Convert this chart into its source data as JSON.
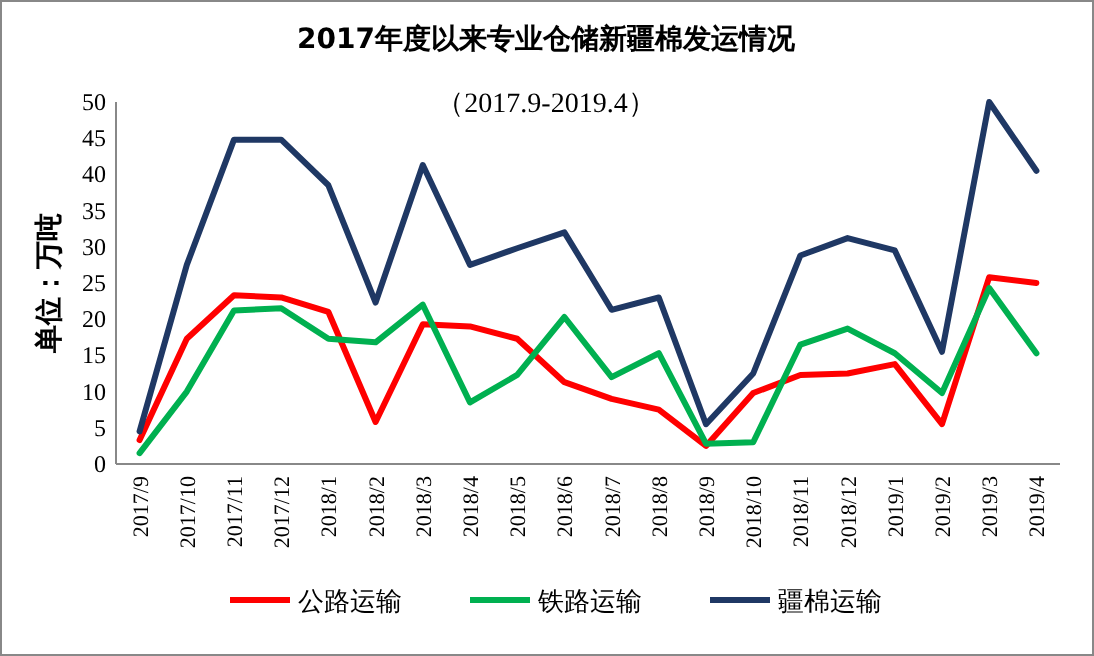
{
  "chart_data": {
    "type": "line",
    "title": "2017年度以来专业仓储新疆棉发运情况",
    "subtitle": "（2017.9-2019.4）",
    "ylabel": "单位：万吨",
    "categories": [
      "2017/9",
      "2017/10",
      "2017/11",
      "2017/12",
      "2018/1",
      "2018/2",
      "2018/3",
      "2018/4",
      "2018/5",
      "2018/6",
      "2018/7",
      "2018/8",
      "2018/9",
      "2018/10",
      "2018/11",
      "2018/12",
      "2019/1",
      "2019/2",
      "2019/3",
      "2019/4"
    ],
    "series": [
      {
        "name": "公路运输",
        "color": "#ff0000",
        "values": [
          3.3,
          17.3,
          23.3,
          23.0,
          21.0,
          5.8,
          19.3,
          19.0,
          17.3,
          11.3,
          9.0,
          7.5,
          2.5,
          9.8,
          12.3,
          12.5,
          13.8,
          5.5,
          25.8,
          25.0
        ]
      },
      {
        "name": "铁路运输",
        "color": "#00b050",
        "values": [
          1.5,
          10.0,
          21.2,
          21.5,
          17.3,
          16.8,
          22.0,
          8.5,
          12.3,
          20.3,
          12.0,
          15.3,
          2.8,
          3.0,
          16.5,
          18.7,
          15.3,
          9.8,
          24.3,
          15.3
        ]
      },
      {
        "name": "疆棉运输",
        "color": "#1f3864",
        "values": [
          4.5,
          27.5,
          44.8,
          44.8,
          38.5,
          22.3,
          41.3,
          27.5,
          29.8,
          32.0,
          21.3,
          23.0,
          5.5,
          12.5,
          28.8,
          31.2,
          29.5,
          15.5,
          50.0,
          40.5
        ]
      }
    ],
    "ylim": [
      0,
      50
    ],
    "yticks": [
      0,
      5,
      10,
      15,
      20,
      25,
      30,
      35,
      40,
      45,
      50
    ],
    "legend": "bottom",
    "grid": false,
    "marker": "none",
    "line_style": "solid"
  }
}
